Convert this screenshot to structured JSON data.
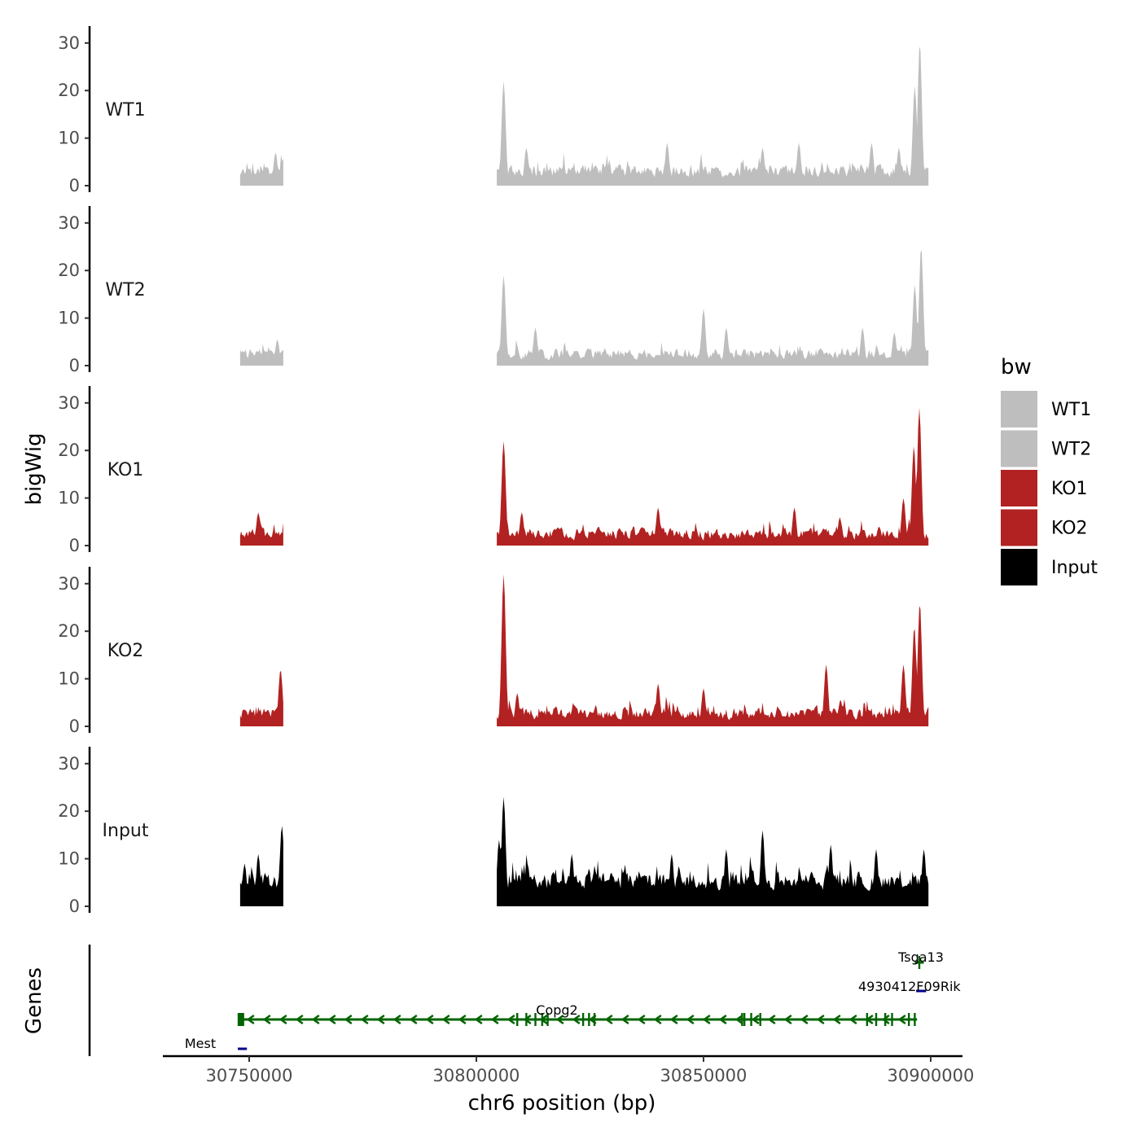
{
  "chart_data": {
    "type": "area",
    "y_axis_title": "bigWig",
    "x_axis_title": "chr6 position (bp)",
    "genes_axis_title": "Genes",
    "xlim": [
      30731000,
      30907000
    ],
    "ylim": [
      0,
      33
    ],
    "y_ticks": [
      0,
      10,
      20,
      30
    ],
    "y_tick_labels": [
      "0",
      "10",
      "20",
      "30"
    ],
    "x_ticks": [
      30750000,
      30800000,
      30850000,
      30900000
    ],
    "x_tick_labels": [
      "30750000",
      "30800000",
      "30850000",
      "30900000"
    ],
    "coverage_segments": [
      [
        30748000,
        30757500
      ],
      [
        30804500,
        30899500
      ]
    ],
    "tracks": [
      {
        "name": "WT1",
        "color": "#bebebe",
        "peaks": [
          [
            30806000,
            22
          ],
          [
            30897600,
            30
          ],
          [
            30896500,
            21
          ],
          [
            30893000,
            8
          ],
          [
            30755800,
            7
          ],
          [
            30811000,
            8
          ],
          [
            30842000,
            9
          ],
          [
            30863000,
            8
          ],
          [
            30871000,
            9
          ],
          [
            30887000,
            9
          ]
        ],
        "baseline": 2.5,
        "variability": 3.5
      },
      {
        "name": "WT2",
        "color": "#bebebe",
        "peaks": [
          [
            30806000,
            19
          ],
          [
            30897900,
            25
          ],
          [
            30896500,
            17
          ],
          [
            30850000,
            12
          ],
          [
            30756200,
            5.5
          ],
          [
            30855000,
            8
          ],
          [
            30885000,
            8
          ],
          [
            30892000,
            7
          ],
          [
            30813000,
            8
          ]
        ],
        "baseline": 2.0,
        "variability": 3.0
      },
      {
        "name": "KO1",
        "color": "#b22222",
        "peaks": [
          [
            30806000,
            22
          ],
          [
            30897500,
            29
          ],
          [
            30896300,
            21
          ],
          [
            30894000,
            10
          ],
          [
            30810000,
            7
          ],
          [
            30840000,
            8
          ],
          [
            30870000,
            8
          ],
          [
            30880000,
            6
          ],
          [
            30752000,
            7
          ]
        ],
        "baseline": 2.0,
        "variability": 3.2
      },
      {
        "name": "KO2",
        "color": "#b22222",
        "peaks": [
          [
            30806000,
            32
          ],
          [
            30897600,
            26
          ],
          [
            30896400,
            21
          ],
          [
            30894000,
            13
          ],
          [
            30756900,
            12
          ],
          [
            30840000,
            9
          ],
          [
            30877000,
            13
          ],
          [
            30850000,
            8
          ],
          [
            30809000,
            7
          ]
        ],
        "baseline": 2.2,
        "variability": 3.4
      },
      {
        "name": "Input",
        "color": "#000000",
        "peaks": [
          [
            30806000,
            23
          ],
          [
            30805000,
            14
          ],
          [
            30757200,
            17
          ],
          [
            30863000,
            16
          ],
          [
            30878000,
            13
          ],
          [
            30888000,
            12
          ],
          [
            30855000,
            12
          ],
          [
            30821000,
            11
          ],
          [
            30843000,
            11
          ],
          [
            30752000,
            11
          ],
          [
            30749000,
            9
          ],
          [
            30898500,
            12
          ]
        ],
        "baseline": 4.5,
        "variability": 5.0
      }
    ],
    "legend": {
      "title": "bw",
      "items": [
        {
          "label": "WT1",
          "color": "#bebebe"
        },
        {
          "label": "WT2",
          "color": "#bebebe"
        },
        {
          "label": "KO1",
          "color": "#b22222"
        },
        {
          "label": "KO2",
          "color": "#b22222"
        },
        {
          "label": "Input",
          "color": "#000000"
        }
      ]
    },
    "genes": [
      {
        "name": "Copg2",
        "start": 30748000,
        "end": 30897000,
        "strand": "-",
        "color": "#006400",
        "exons": [
          30748000,
          30809000,
          30811000,
          30813000,
          30814500,
          30815700,
          30823500,
          30824800,
          30826000,
          30858500,
          30859000,
          30860500,
          30862500,
          30886000,
          30888000,
          30890000,
          30891500,
          30895200,
          30896500
        ]
      },
      {
        "name": "Tsga13",
        "start": 30896500,
        "end": 30898500,
        "strand": "-",
        "color": "#006400",
        "exons": [
          30897500
        ]
      },
      {
        "name": "4930412F09Rik",
        "start": 30896800,
        "end": 30899000,
        "strand": "+",
        "color": "#00008b",
        "exons": []
      },
      {
        "name": "Mest",
        "start": 30747500,
        "end": 30749500,
        "strand": "+",
        "color": "#00008b",
        "exons": []
      }
    ]
  }
}
